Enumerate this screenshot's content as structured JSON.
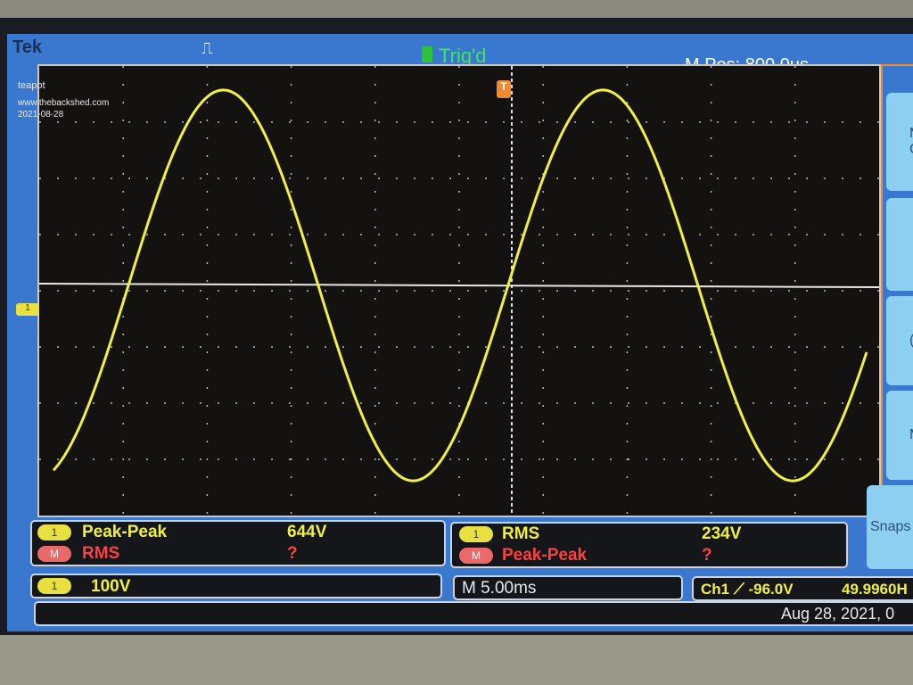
{
  "header": {
    "brand": "Tek",
    "trigger_status": "Trig'd",
    "horizontal_position": "M Pos: 800.0us",
    "trigger_icon": "pulse-edge-icon"
  },
  "annotations": {
    "line1": "teapot",
    "line2": "www.thebackshed.com",
    "line3": "2021-08-28"
  },
  "measurements": {
    "left": [
      {
        "source": "1",
        "name": "Peak-Peak",
        "value": "644V"
      },
      {
        "source": "M",
        "name": "RMS",
        "value": "?"
      }
    ],
    "right": [
      {
        "source": "1",
        "name": "RMS",
        "value": "234V"
      },
      {
        "source": "M",
        "name": "Peak-Peak",
        "value": "?"
      }
    ]
  },
  "status": {
    "ch1_badge": "1",
    "ch1_scale": "100V",
    "timebase": "M 5.00ms",
    "trigger": "Ch1 ⟋ -96.0V",
    "frequency": "49.9960H",
    "date": "Aug 28, 2021, 0"
  },
  "side_menu": [
    {
      "label": "M\nC"
    },
    {
      "label": ""
    },
    {
      "label": "("
    },
    {
      "label": "M"
    },
    {
      "label": "Snaps"
    }
  ],
  "markers": {
    "channel": "1",
    "trigger": "T"
  },
  "colors": {
    "ch1": "#f0f040",
    "math": "#ff4040",
    "screen": "#3a78d0",
    "menu_border": "#f08a30"
  },
  "chart_data": {
    "type": "line",
    "waveform": "sine",
    "channel": "1",
    "volts_per_div": 100,
    "time_per_div_ms": 5,
    "peak_to_peak_v": 644,
    "rms_v": 234,
    "frequency_hz": 49.996,
    "horizontal_divisions": 10,
    "vertical_divisions": 8,
    "grid": true
  }
}
